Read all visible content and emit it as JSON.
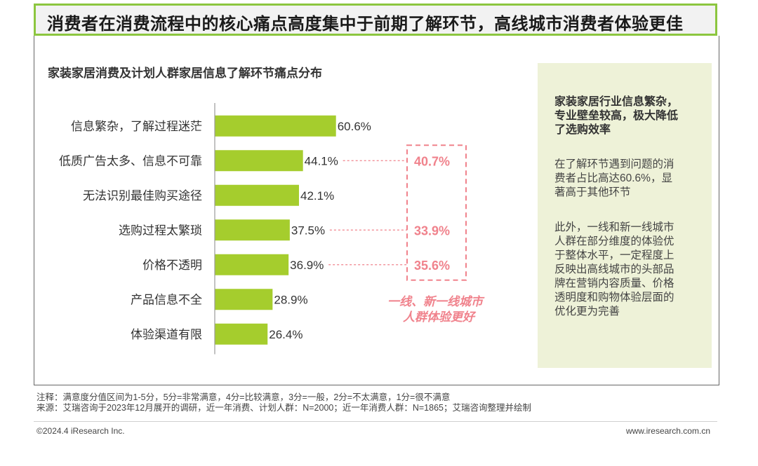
{
  "header": {
    "title": "消费者在消费流程中的核心痛点高度集中于前期了解环节，高线城市消费者体验更佳"
  },
  "chart_data": {
    "type": "bar",
    "orientation": "horizontal",
    "title": "家装家居消费及计划人群家居信息了解环节痛点分布",
    "categories": [
      "信息繁杂，了解过程迷茫",
      "低质广告太多、信息不可靠",
      "无法识别最佳购买途径",
      "选购过程太繁琐",
      "价格不透明",
      "产品信息不全",
      "体验渠道有限"
    ],
    "series": [
      {
        "name": "总体",
        "values": [
          60.6,
          44.1,
          42.1,
          37.5,
          36.9,
          28.9,
          26.4
        ]
      }
    ],
    "value_labels": [
      "60.6%",
      "44.1%",
      "42.1%",
      "37.5%",
      "36.9%",
      "28.9%",
      "26.4%"
    ],
    "xlim": [
      0,
      100
    ],
    "highlight": {
      "values": [
        {
          "category_index": 1,
          "label": "40.7%"
        },
        {
          "category_index": 3,
          "label": "33.9%"
        },
        {
          "category_index": 4,
          "label": "35.6%"
        }
      ],
      "annotation_lines": [
        "一线、新一线城市",
        "人群体验更好"
      ]
    },
    "colors": {
      "bar": "#a5cd2d",
      "highlight": "#f0828c",
      "axis": "#999999"
    }
  },
  "side_panel": {
    "heading_lines": [
      "家装家居行业信息繁杂，",
      "专业壁垒较高，极大降低",
      "了选购效率"
    ],
    "para1_lines": [
      "在了解环节遇到问题的消",
      "费者占比高达60.6%，显",
      "著高于其他环节"
    ],
    "para2_lines": [
      "此外，一线和新一线城市",
      "人群在部分维度的体验优",
      "于整体水平，一定程度上",
      "反映出高线城市的头部品",
      "牌在营销内容质量、价格",
      "透明度和购物体验层面的",
      "优化更为完善"
    ]
  },
  "footer": {
    "note": "注释：满意度分值区间为1-5分，5分=非常满意，4分=比较满意，3分=一般，2分=不太满意，1分=很不满意",
    "source": "来源：艾瑞咨询于2023年12月展开的调研，近一年消费、计划人群：N=2000；近一年消费人群：N=1865；艾瑞咨询整理并绘制",
    "copyright": "©2024.4 iResearch Inc.",
    "url": "www.iresearch.com.cn"
  }
}
